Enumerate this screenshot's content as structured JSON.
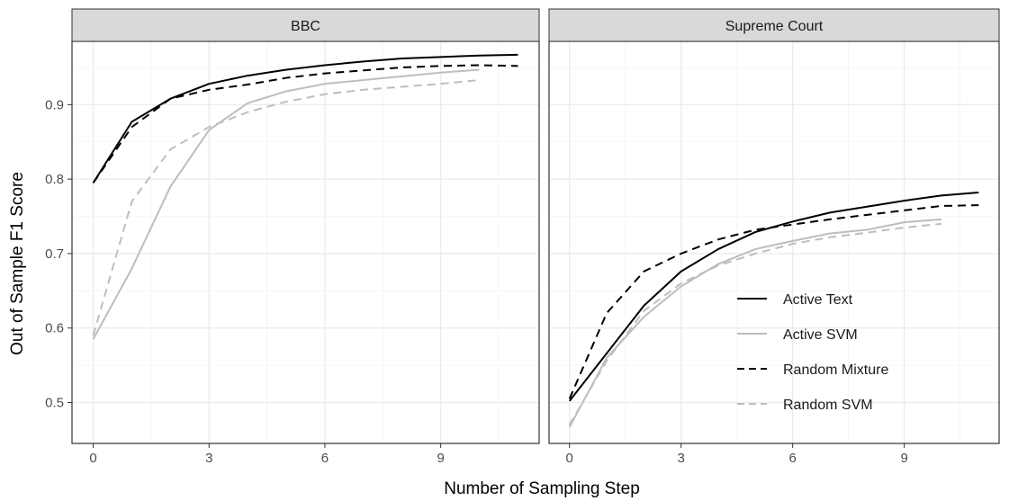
{
  "chart_data": {
    "type": "line",
    "xlabel": "Number of Sampling Step",
    "ylabel": "Out of Sample F1 Score",
    "xlim": [
      -0.55,
      11.55
    ],
    "ylim": [
      0.445,
      0.985
    ],
    "x_ticks": [
      0,
      3,
      6,
      9
    ],
    "y_ticks": [
      0.5,
      0.6,
      0.7,
      0.8,
      0.9
    ],
    "grid": true,
    "legend": {
      "placement": "inside-right-of-second-panel",
      "entries": [
        "Active Text",
        "Active SVM",
        "Random Mixture",
        "Random SVM"
      ]
    },
    "series_styles": {
      "Active Text": {
        "color": "#000000",
        "dash": "solid"
      },
      "Active SVM": {
        "color": "#bdbdbd",
        "dash": "solid"
      },
      "Random Mixture": {
        "color": "#000000",
        "dash": "dashed"
      },
      "Random SVM": {
        "color": "#bdbdbd",
        "dash": "dashed"
      }
    },
    "panels": [
      {
        "title": "BBC",
        "series": [
          {
            "name": "Active Text",
            "x": [
              0,
              1,
              2,
              3,
              4,
              5,
              6,
              7,
              8,
              9,
              10,
              11
            ],
            "y": [
              0.795,
              0.877,
              0.908,
              0.928,
              0.939,
              0.947,
              0.953,
              0.958,
              0.962,
              0.964,
              0.966,
              0.967
            ]
          },
          {
            "name": "Active SVM",
            "x": [
              0,
              1,
              2,
              3,
              4,
              5,
              6,
              7,
              8,
              9,
              10
            ],
            "y": [
              0.585,
              0.68,
              0.79,
              0.866,
              0.902,
              0.918,
              0.928,
              0.933,
              0.938,
              0.943,
              0.947
            ]
          },
          {
            "name": "Random Mixture",
            "x": [
              0,
              1,
              2,
              3,
              4,
              5,
              6,
              7,
              8,
              9,
              10,
              11
            ],
            "y": [
              0.795,
              0.87,
              0.908,
              0.92,
              0.927,
              0.936,
              0.942,
              0.946,
              0.95,
              0.952,
              0.953,
              0.952
            ]
          },
          {
            "name": "Random SVM",
            "x": [
              0,
              1,
              2,
              3,
              4,
              5,
              6,
              7,
              8,
              9,
              10
            ],
            "y": [
              0.59,
              0.77,
              0.84,
              0.87,
              0.89,
              0.904,
              0.914,
              0.92,
              0.924,
              0.928,
              0.933
            ]
          }
        ]
      },
      {
        "title": "Supreme Court",
        "series": [
          {
            "name": "Active Text",
            "x": [
              0,
              1,
              2,
              3,
              4,
              5,
              6,
              7,
              8,
              9,
              10,
              11
            ],
            "y": [
              0.502,
              0.566,
              0.63,
              0.676,
              0.706,
              0.729,
              0.743,
              0.755,
              0.763,
              0.771,
              0.778,
              0.782
            ]
          },
          {
            "name": "Active SVM",
            "x": [
              0,
              1,
              2,
              3,
              4,
              5,
              6,
              7,
              8,
              9,
              10
            ],
            "y": [
              0.467,
              0.56,
              0.615,
              0.656,
              0.686,
              0.706,
              0.717,
              0.727,
              0.732,
              0.742,
              0.746
            ]
          },
          {
            "name": "Random Mixture",
            "x": [
              0,
              1,
              2,
              3,
              4,
              5,
              6,
              7,
              8,
              9,
              10,
              11
            ],
            "y": [
              0.505,
              0.62,
              0.676,
              0.7,
              0.719,
              0.732,
              0.739,
              0.746,
              0.752,
              0.758,
              0.764,
              0.765
            ]
          },
          {
            "name": "Random SVM",
            "x": [
              0,
              1,
              2,
              3,
              4,
              5,
              6,
              7,
              8,
              9,
              10
            ],
            "y": [
              0.47,
              0.556,
              0.623,
              0.66,
              0.684,
              0.7,
              0.713,
              0.722,
              0.728,
              0.735,
              0.74
            ]
          }
        ]
      }
    ]
  }
}
